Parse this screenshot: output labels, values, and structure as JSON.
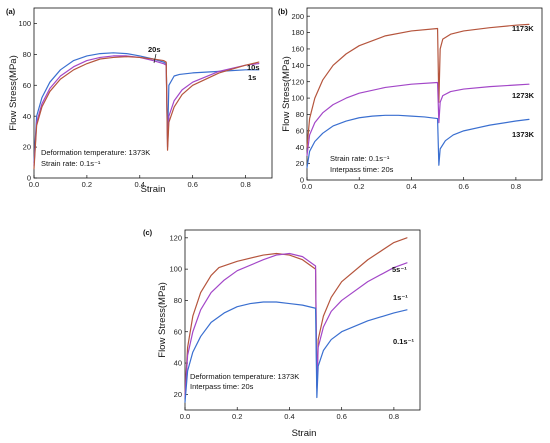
{
  "chart_data": [
    {
      "panel": "(a)",
      "type": "line",
      "xlabel": "Strain",
      "ylabel": "Flow Stress(MPa)",
      "xlim": [
        0,
        0.9
      ],
      "ylim": [
        0,
        110
      ],
      "xticks": [
        "0.0",
        "0.2",
        "0.4",
        "0.6",
        "0.8"
      ],
      "yticks": [
        "0",
        "20",
        "40",
        "60",
        "80",
        "100"
      ],
      "annotations": [
        "Deformation temperature: 1373K",
        "Strain rate: 0.1s⁻¹"
      ],
      "series": [
        {
          "name": "1s",
          "color": "#3a6fd0",
          "x": [
            0,
            0.01,
            0.03,
            0.06,
            0.1,
            0.15,
            0.2,
            0.25,
            0.3,
            0.35,
            0.4,
            0.45,
            0.49,
            0.5,
            0.505,
            0.51,
            0.53,
            0.55,
            0.6,
            0.7,
            0.8,
            0.85
          ],
          "y": [
            10,
            40,
            52,
            62,
            70,
            76,
            79,
            80.5,
            81,
            80.5,
            79,
            77,
            75,
            74,
            25,
            60,
            66,
            67,
            68,
            69,
            70,
            70
          ]
        },
        {
          "name": "10s",
          "color": "#a347c8",
          "x": [
            0,
            0.01,
            0.03,
            0.06,
            0.1,
            0.15,
            0.2,
            0.25,
            0.3,
            0.35,
            0.4,
            0.45,
            0.49,
            0.5,
            0.505,
            0.51,
            0.53,
            0.56,
            0.6,
            0.7,
            0.8,
            0.85
          ],
          "y": [
            8,
            36,
            48,
            58,
            66,
            72,
            76,
            78,
            79,
            79,
            78,
            76,
            74,
            73,
            20,
            40,
            50,
            57,
            62,
            69,
            73,
            74
          ]
        },
        {
          "name": "20s",
          "color": "#b5553d",
          "x": [
            0,
            0.01,
            0.03,
            0.06,
            0.1,
            0.15,
            0.2,
            0.25,
            0.3,
            0.35,
            0.4,
            0.45,
            0.49,
            0.5,
            0.505,
            0.51,
            0.53,
            0.56,
            0.6,
            0.7,
            0.8,
            0.85
          ],
          "y": [
            6,
            34,
            46,
            56,
            64,
            70,
            74,
            77,
            78,
            78.5,
            78,
            77,
            76,
            75,
            18,
            36,
            46,
            54,
            60,
            68,
            73,
            75
          ]
        }
      ]
    },
    {
      "panel": "(b)",
      "type": "line",
      "xlabel": "",
      "ylabel": "Flow Stress(MPa)",
      "xlim": [
        0,
        0.9
      ],
      "ylim": [
        0,
        210
      ],
      "xticks": [
        "0.0",
        "0.2",
        "0.4",
        "0.6",
        "0.8"
      ],
      "yticks": [
        "0",
        "20",
        "40",
        "60",
        "80",
        "100",
        "120",
        "140",
        "160",
        "180",
        "200"
      ],
      "annotations": [
        "Strain rate: 0.1s⁻¹",
        "Interpass time: 20s"
      ],
      "series": [
        {
          "name": "1173K",
          "color": "#b5553d",
          "x": [
            0,
            0.01,
            0.03,
            0.06,
            0.1,
            0.15,
            0.2,
            0.3,
            0.4,
            0.5,
            0.505,
            0.51,
            0.52,
            0.55,
            0.6,
            0.7,
            0.8,
            0.85
          ],
          "y": [
            40,
            75,
            100,
            122,
            140,
            154,
            164,
            176,
            182,
            185,
            95,
            160,
            172,
            178,
            182,
            186,
            189,
            190
          ]
        },
        {
          "name": "1273K",
          "color": "#a347c8",
          "x": [
            0,
            0.01,
            0.03,
            0.06,
            0.1,
            0.15,
            0.2,
            0.3,
            0.4,
            0.5,
            0.505,
            0.51,
            0.52,
            0.55,
            0.6,
            0.7,
            0.8,
            0.85
          ],
          "y": [
            30,
            55,
            70,
            82,
            92,
            100,
            106,
            113,
            117,
            119,
            70,
            95,
            103,
            108,
            111,
            114,
            116,
            117
          ]
        },
        {
          "name": "1373K",
          "color": "#3a6fd0",
          "x": [
            0,
            0.01,
            0.03,
            0.06,
            0.1,
            0.15,
            0.2,
            0.25,
            0.3,
            0.35,
            0.4,
            0.45,
            0.5,
            0.505,
            0.51,
            0.53,
            0.56,
            0.6,
            0.7,
            0.8,
            0.85
          ],
          "y": [
            15,
            35,
            47,
            57,
            66,
            72,
            76,
            78,
            79,
            79,
            78,
            77,
            75,
            18,
            38,
            48,
            55,
            60,
            67,
            72,
            74
          ]
        }
      ]
    },
    {
      "panel": "(c)",
      "type": "line",
      "xlabel": "Strain",
      "ylabel": "Flow Stress(MPa)",
      "xlim": [
        0,
        0.9
      ],
      "ylim": [
        10,
        125
      ],
      "xticks": [
        "0.0",
        "0.2",
        "0.4",
        "0.6",
        "0.8"
      ],
      "yticks": [
        "20",
        "40",
        "60",
        "80",
        "100",
        "120"
      ],
      "annotations": [
        "Deformation temperature: 1373K",
        "Interpass time: 20s"
      ],
      "series": [
        {
          "name": "5s⁻¹",
          "color": "#b5553d",
          "x": [
            0,
            0.01,
            0.03,
            0.06,
            0.1,
            0.13,
            0.2,
            0.3,
            0.35,
            0.4,
            0.45,
            0.5,
            0.505,
            0.51,
            0.53,
            0.56,
            0.6,
            0.7,
            0.8,
            0.85
          ],
          "y": [
            20,
            50,
            70,
            85,
            96,
            101,
            105,
            109,
            110,
            109,
            106,
            100,
            25,
            55,
            70,
            82,
            92,
            106,
            117,
            120
          ]
        },
        {
          "name": "1s⁻¹",
          "color": "#a347c8",
          "x": [
            0,
            0.01,
            0.03,
            0.06,
            0.1,
            0.15,
            0.2,
            0.3,
            0.35,
            0.4,
            0.45,
            0.5,
            0.505,
            0.51,
            0.53,
            0.56,
            0.6,
            0.7,
            0.8,
            0.85
          ],
          "y": [
            18,
            45,
            60,
            74,
            85,
            93,
            99,
            106,
            109,
            110,
            108,
            102,
            24,
            50,
            63,
            73,
            80,
            92,
            101,
            104
          ]
        },
        {
          "name": "0.1s⁻¹",
          "color": "#3a6fd0",
          "x": [
            0,
            0.01,
            0.03,
            0.06,
            0.1,
            0.15,
            0.2,
            0.25,
            0.3,
            0.35,
            0.4,
            0.45,
            0.5,
            0.505,
            0.51,
            0.53,
            0.56,
            0.6,
            0.7,
            0.8,
            0.85
          ],
          "y": [
            15,
            35,
            47,
            57,
            66,
            72,
            76,
            78,
            79,
            79,
            78,
            77,
            75,
            18,
            38,
            48,
            55,
            60,
            67,
            72,
            74
          ]
        }
      ]
    }
  ]
}
